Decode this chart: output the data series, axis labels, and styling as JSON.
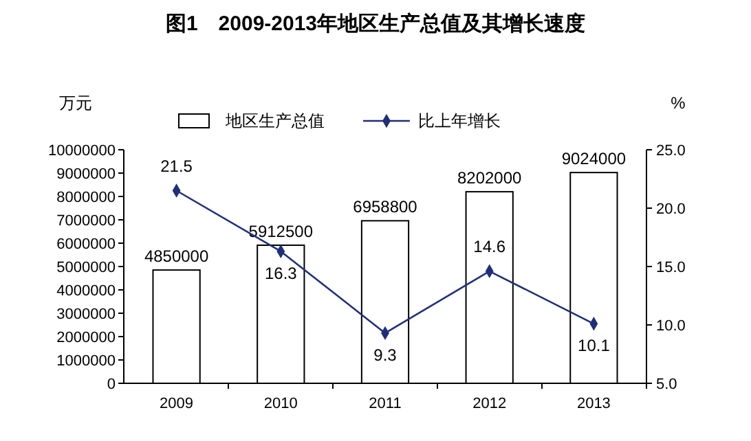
{
  "chart_data": {
    "type": "bar",
    "title": "图1　2009-2013年地区生产总值及其增长速度",
    "ylabel": "万元",
    "y2label": "%",
    "categories": [
      "2009",
      "2010",
      "2011",
      "2012",
      "2013"
    ],
    "series": [
      {
        "name": "地区生产总值",
        "color": "#ffffff",
        "values": [
          4850000,
          5912500,
          6958800,
          8202000,
          9024000
        ]
      },
      {
        "name": "比上年增长",
        "type": "line",
        "axis": "y2",
        "color": "#1f2f7a",
        "marker": "diamond",
        "values": [
          21.5,
          16.3,
          9.3,
          14.6,
          10.1
        ]
      }
    ],
    "ylim": [
      0,
      10000000
    ],
    "yticks": [
      0,
      1000000,
      2000000,
      3000000,
      4000000,
      5000000,
      6000000,
      7000000,
      8000000,
      9000000,
      10000000
    ],
    "y2lim": [
      5,
      25
    ],
    "y2ticks": [
      {
        "value": 5,
        "label": "5.0"
      },
      {
        "value": 10,
        "label": "10.0"
      },
      {
        "value": 15,
        "label": "15.0"
      },
      {
        "value": 20,
        "label": "20.0"
      },
      {
        "value": 25,
        "label": "25.0"
      }
    ],
    "data_labels": true,
    "legend": "top",
    "grid": false
  }
}
